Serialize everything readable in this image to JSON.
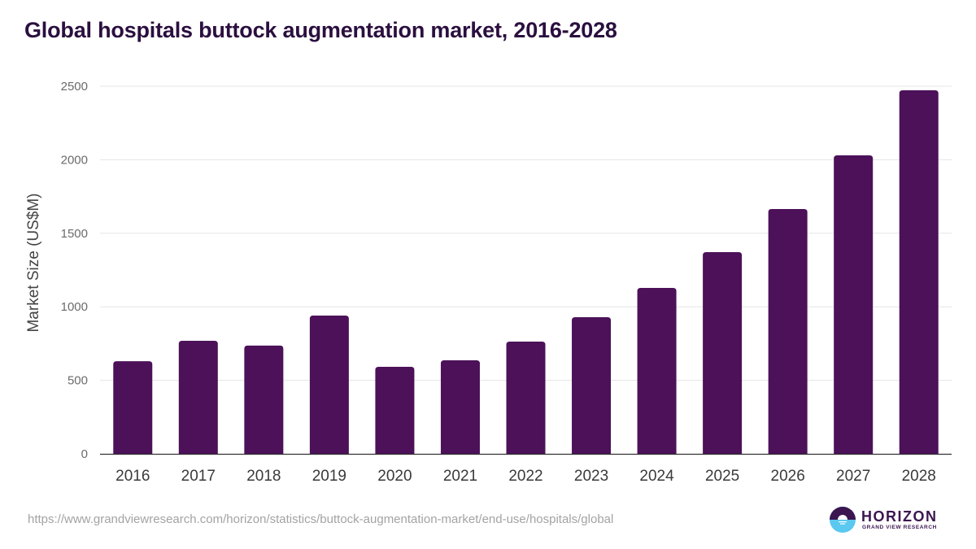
{
  "header": {
    "title": "Global hospitals buttock augmentation market, 2016-2028"
  },
  "footer": {
    "source_url": "https://www.grandviewresearch.com/horizon/statistics/buttock-augmentation-market/end-use/hospitals/global",
    "logo_word": "HORIZON",
    "logo_sub": "GRAND VIEW RESEARCH"
  },
  "colors": {
    "bar": "#4c1159",
    "title": "#2b0f3f",
    "grid": "#e5e5e5",
    "axis": "#333333",
    "tick_label": "#6b6b6b",
    "logo_dark": "#3b1650",
    "logo_light": "#5bc8ef"
  },
  "chart_data": {
    "type": "bar",
    "title": "Global hospitals buttock augmentation market, 2016-2028",
    "xlabel": "",
    "ylabel": "Market Size (US$M)",
    "categories": [
      "2016",
      "2017",
      "2018",
      "2019",
      "2020",
      "2021",
      "2022",
      "2023",
      "2024",
      "2025",
      "2026",
      "2027",
      "2028"
    ],
    "values": [
      630,
      769,
      736,
      940,
      592,
      636,
      763,
      929,
      1128,
      1372,
      1665,
      2030,
      2472
    ],
    "ylim": [
      0,
      2500
    ],
    "yticks": [
      0,
      500,
      1000,
      1500,
      2000,
      2500
    ],
    "grid": true,
    "legend": "none"
  }
}
